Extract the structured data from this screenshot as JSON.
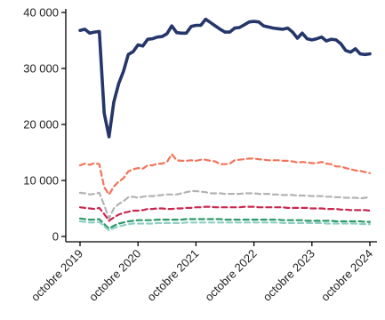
{
  "chart_data": {
    "type": "line",
    "title": "",
    "xlabel": "",
    "ylabel": "",
    "x_ticks": [
      "octobre 2019",
      "octobre 2020",
      "octobre 2021",
      "octobre 2022",
      "octobre 2023",
      "octobre 2024"
    ],
    "y_ticks": [
      "0",
      "10 000",
      "20 000",
      "30 000",
      "40 000"
    ],
    "y_tick_values": [
      0,
      10000,
      20000,
      30000,
      40000
    ],
    "ylim": [
      0,
      40000
    ],
    "x_domain": [
      "2019-10",
      "2024-10"
    ],
    "grid": false,
    "legend": "none",
    "x": [
      "2019-10",
      "2019-11",
      "2019-12",
      "2020-01",
      "2020-02",
      "2020-03",
      "2020-04",
      "2020-05",
      "2020-06",
      "2020-07",
      "2020-08",
      "2020-09",
      "2020-10",
      "2020-11",
      "2020-12",
      "2021-01",
      "2021-02",
      "2021-03",
      "2021-04",
      "2021-05",
      "2021-06",
      "2021-07",
      "2021-08",
      "2021-09",
      "2021-10",
      "2021-11",
      "2021-12",
      "2022-01",
      "2022-02",
      "2022-03",
      "2022-04",
      "2022-05",
      "2022-06",
      "2022-07",
      "2022-08",
      "2022-09",
      "2022-10",
      "2022-11",
      "2022-12",
      "2023-01",
      "2023-02",
      "2023-03",
      "2023-04",
      "2023-05",
      "2023-06",
      "2023-07",
      "2023-08",
      "2023-09",
      "2023-10",
      "2023-11",
      "2023-12",
      "2024-01",
      "2024-02",
      "2024-03",
      "2024-04",
      "2024-05",
      "2024-06",
      "2024-07",
      "2024-08",
      "2024-09",
      "2024-10"
    ],
    "series": [
      {
        "color": "#25366b",
        "style": "solid",
        "values": [
          36800,
          37000,
          36300,
          36500,
          36600,
          22000,
          17800,
          24000,
          27300,
          29500,
          32500,
          33000,
          34200,
          34000,
          35200,
          35300,
          35600,
          35700,
          36200,
          37600,
          36400,
          36300,
          36300,
          37500,
          37700,
          37700,
          38800,
          38200,
          37600,
          37000,
          36500,
          36500,
          37200,
          37300,
          37800,
          38300,
          38400,
          38300,
          37600,
          37400,
          37200,
          37100,
          37000,
          37200,
          36500,
          35400,
          36300,
          35300,
          35100,
          35300,
          35600,
          34900,
          35200,
          35100,
          34400,
          33200,
          32900,
          33500,
          32600,
          32500,
          32600
        ]
      },
      {
        "color": "#f2735a",
        "style": "dashed",
        "values": [
          12700,
          13000,
          12800,
          13100,
          12900,
          8800,
          7500,
          8900,
          9800,
          10400,
          11600,
          12000,
          12200,
          12100,
          12700,
          12700,
          13000,
          13000,
          13300,
          14700,
          13600,
          13500,
          13500,
          13600,
          13500,
          13700,
          13700,
          13500,
          13400,
          12900,
          12900,
          13000,
          13600,
          13700,
          13800,
          13900,
          13900,
          13800,
          13700,
          13600,
          13600,
          13600,
          13500,
          13500,
          13400,
          13200,
          13300,
          13200,
          13100,
          13100,
          13300,
          13000,
          12900,
          12500,
          12500,
          12200,
          12000,
          11800,
          11700,
          11500,
          11300
        ]
      },
      {
        "color": "#b3b3b3",
        "style": "dashed",
        "values": [
          7800,
          7700,
          7500,
          7600,
          7800,
          5600,
          3200,
          5000,
          5800,
          6300,
          7000,
          7100,
          6900,
          7100,
          7200,
          7200,
          7300,
          7400,
          7500,
          7500,
          7500,
          7700,
          7900,
          8100,
          8100,
          8000,
          7900,
          7700,
          7700,
          7700,
          7600,
          7600,
          7600,
          7600,
          7700,
          7700,
          7700,
          7600,
          7600,
          7600,
          7500,
          7500,
          7400,
          7400,
          7400,
          7300,
          7300,
          7300,
          7200,
          7200,
          7200,
          7100,
          7100,
          7000,
          7000,
          6900,
          6900,
          6900,
          6800,
          6900,
          7000
        ]
      },
      {
        "color": "#c8284f",
        "style": "dashed",
        "values": [
          5200,
          5100,
          5000,
          4900,
          5100,
          4000,
          2800,
          3400,
          3900,
          4200,
          4400,
          4600,
          4600,
          4700,
          4900,
          4900,
          5000,
          5000,
          4900,
          4900,
          5000,
          5000,
          5100,
          5100,
          5200,
          5200,
          5300,
          5300,
          5200,
          5200,
          5200,
          5200,
          5200,
          5200,
          5300,
          5300,
          5300,
          5200,
          5200,
          5200,
          5200,
          5200,
          5200,
          5100,
          5100,
          5100,
          5100,
          5100,
          5000,
          5000,
          5000,
          4900,
          4900,
          4900,
          4800,
          4800,
          4700,
          4700,
          4700,
          4700,
          4600
        ]
      },
      {
        "color": "#2e9a6a",
        "style": "dashed",
        "values": [
          3200,
          3100,
          3000,
          3000,
          3100,
          2200,
          1400,
          1900,
          2300,
          2500,
          2700,
          2800,
          2900,
          2900,
          2900,
          2900,
          3000,
          3000,
          3000,
          3000,
          3000,
          3000,
          3100,
          3100,
          3100,
          3100,
          3100,
          3100,
          3100,
          3100,
          3000,
          3000,
          3000,
          3000,
          3000,
          3000,
          3000,
          3000,
          3000,
          3000,
          3000,
          3000,
          2900,
          2900,
          2900,
          2900,
          2900,
          2800,
          2800,
          2800,
          2800,
          2800,
          2800,
          2700,
          2700,
          2700,
          2700,
          2700,
          2700,
          2600,
          2600
        ]
      },
      {
        "color": "#8fcfc4",
        "style": "dashed",
        "values": [
          2700,
          2600,
          2500,
          2500,
          2600,
          1800,
          1100,
          1500,
          1800,
          2000,
          2200,
          2300,
          2300,
          2300,
          2300,
          2300,
          2400,
          2400,
          2400,
          2400,
          2400,
          2400,
          2500,
          2500,
          2500,
          2500,
          2500,
          2500,
          2500,
          2500,
          2500,
          2500,
          2500,
          2500,
          2500,
          2500,
          2500,
          2500,
          2500,
          2500,
          2500,
          2500,
          2400,
          2400,
          2400,
          2400,
          2400,
          2400,
          2400,
          2400,
          2400,
          2300,
          2300,
          2300,
          2300,
          2300,
          2300,
          2300,
          2200,
          2200,
          2200
        ]
      }
    ]
  }
}
